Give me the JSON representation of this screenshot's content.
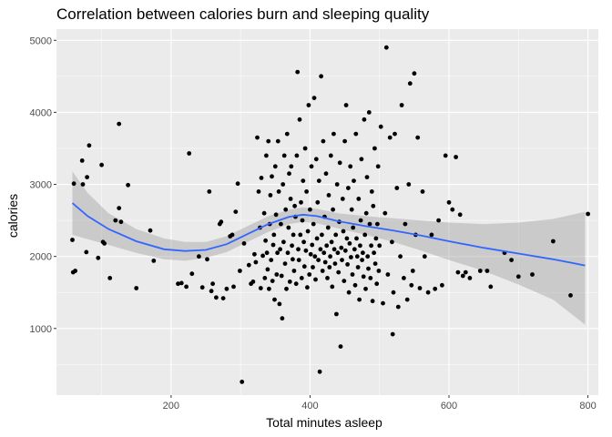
{
  "chart_data": {
    "type": "scatter",
    "title": "Correlation between calories burn and sleeping quality",
    "xlabel": "Total minutes asleep",
    "ylabel": "calories",
    "xlim": [
      35,
      815
    ],
    "ylim": [
      75,
      5155
    ],
    "x_ticks": [
      200,
      400,
      600,
      800
    ],
    "y_ticks": [
      1000,
      2000,
      3000,
      4000,
      5000
    ],
    "grid": true,
    "background": "#ebebeb",
    "point_color": "#000000",
    "smooth_color": "#3366ff",
    "ribbon_color": "#999999",
    "smooth_line": [
      [
        58,
        2740
      ],
      [
        80,
        2560
      ],
      [
        110,
        2380
      ],
      [
        150,
        2210
      ],
      [
        190,
        2100
      ],
      [
        220,
        2075
      ],
      [
        250,
        2090
      ],
      [
        280,
        2170
      ],
      [
        310,
        2310
      ],
      [
        340,
        2450
      ],
      [
        370,
        2550
      ],
      [
        390,
        2580
      ],
      [
        410,
        2560
      ],
      [
        440,
        2490
      ],
      [
        480,
        2420
      ],
      [
        520,
        2360
      ],
      [
        560,
        2290
      ],
      [
        600,
        2210
      ],
      [
        650,
        2120
      ],
      [
        700,
        2040
      ],
      [
        750,
        1960
      ],
      [
        796,
        1875
      ]
    ],
    "confidence_band": {
      "upper": [
        [
          58,
          3180
        ],
        [
          80,
          2880
        ],
        [
          110,
          2600
        ],
        [
          150,
          2380
        ],
        [
          190,
          2250
        ],
        [
          220,
          2200
        ],
        [
          250,
          2200
        ],
        [
          280,
          2280
        ],
        [
          310,
          2420
        ],
        [
          340,
          2560
        ],
        [
          370,
          2650
        ],
        [
          390,
          2680
        ],
        [
          410,
          2660
        ],
        [
          440,
          2600
        ],
        [
          480,
          2560
        ],
        [
          520,
          2530
        ],
        [
          560,
          2500
        ],
        [
          600,
          2470
        ],
        [
          650,
          2450
        ],
        [
          700,
          2470
        ],
        [
          750,
          2520
        ],
        [
          796,
          2620
        ]
      ],
      "lower": [
        [
          58,
          2300
        ],
        [
          80,
          2240
        ],
        [
          110,
          2160
        ],
        [
          150,
          2050
        ],
        [
          190,
          1960
        ],
        [
          220,
          1940
        ],
        [
          250,
          1980
        ],
        [
          280,
          2060
        ],
        [
          310,
          2200
        ],
        [
          340,
          2340
        ],
        [
          370,
          2450
        ],
        [
          390,
          2480
        ],
        [
          410,
          2460
        ],
        [
          440,
          2390
        ],
        [
          480,
          2300
        ],
        [
          520,
          2200
        ],
        [
          560,
          2080
        ],
        [
          600,
          1950
        ],
        [
          650,
          1800
        ],
        [
          700,
          1610
        ],
        [
          750,
          1400
        ],
        [
          796,
          1050
        ]
      ]
    },
    "points": [
      [
        58,
        2230
      ],
      [
        59,
        1780
      ],
      [
        62,
        1800
      ],
      [
        60,
        3010
      ],
      [
        73,
        3000
      ],
      [
        72,
        3330
      ],
      [
        78,
        2060
      ],
      [
        79,
        3100
      ],
      [
        82,
        3540
      ],
      [
        95,
        1980
      ],
      [
        100,
        3270
      ],
      [
        102,
        2200
      ],
      [
        104,
        2180
      ],
      [
        112,
        1700
      ],
      [
        120,
        2500
      ],
      [
        125,
        3840
      ],
      [
        125,
        2670
      ],
      [
        128,
        2480
      ],
      [
        138,
        2990
      ],
      [
        150,
        1560
      ],
      [
        170,
        2360
      ],
      [
        175,
        1940
      ],
      [
        210,
        1620
      ],
      [
        215,
        1630
      ],
      [
        222,
        1580
      ],
      [
        226,
        3430
      ],
      [
        230,
        1760
      ],
      [
        240,
        2000
      ],
      [
        245,
        1570
      ],
      [
        252,
        1960
      ],
      [
        255,
        2900
      ],
      [
        258,
        1520
      ],
      [
        260,
        1620
      ],
      [
        265,
        1430
      ],
      [
        270,
        2450
      ],
      [
        272,
        2480
      ],
      [
        275,
        1420
      ],
      [
        280,
        1550
      ],
      [
        285,
        2280
      ],
      [
        288,
        2300
      ],
      [
        290,
        1580
      ],
      [
        293,
        2620
      ],
      [
        296,
        3010
      ],
      [
        299,
        1800
      ],
      [
        302,
        260
      ],
      [
        305,
        2180
      ],
      [
        312,
        1880
      ],
      [
        315,
        1620
      ],
      [
        318,
        1650
      ],
      [
        320,
        2030
      ],
      [
        322,
        1920
      ],
      [
        324,
        3650
      ],
      [
        326,
        2900
      ],
      [
        328,
        2400
      ],
      [
        329,
        1560
      ],
      [
        330,
        3090
      ],
      [
        332,
        2010
      ],
      [
        334,
        2600
      ],
      [
        335,
        1700
      ],
      [
        336,
        2220
      ],
      [
        337,
        3400
      ],
      [
        338,
        2050
      ],
      [
        339,
        1820
      ],
      [
        340,
        3600
      ],
      [
        341,
        1550
      ],
      [
        342,
        2450
      ],
      [
        343,
        2850
      ],
      [
        344,
        1950
      ],
      [
        345,
        3110
      ],
      [
        346,
        1660
      ],
      [
        347,
        2160
      ],
      [
        348,
        2300
      ],
      [
        349,
        1400
      ],
      [
        350,
        3250
      ],
      [
        351,
        2580
      ],
      [
        352,
        1750
      ],
      [
        353,
        2050
      ],
      [
        354,
        3600
      ],
      [
        355,
        2900
      ],
      [
        356,
        1340
      ],
      [
        357,
        2100
      ],
      [
        358,
        2450
      ],
      [
        359,
        1730
      ],
      [
        360,
        1140
      ],
      [
        361,
        3000
      ],
      [
        362,
        2200
      ],
      [
        363,
        3400
      ],
      [
        364,
        1900
      ],
      [
        365,
        2650
      ],
      [
        366,
        1550
      ],
      [
        367,
        3700
      ],
      [
        368,
        2050
      ],
      [
        369,
        2400
      ],
      [
        370,
        3150
      ],
      [
        371,
        1650
      ],
      [
        372,
        2800
      ],
      [
        373,
        3250
      ],
      [
        374,
        2150
      ],
      [
        375,
        1960
      ],
      [
        376,
        2300
      ],
      [
        377,
        1800
      ],
      [
        378,
        2700
      ],
      [
        379,
        2550
      ],
      [
        380,
        1620
      ],
      [
        381,
        3400
      ],
      [
        382,
        4560
      ],
      [
        383,
        2100
      ],
      [
        384,
        1950
      ],
      [
        385,
        3900
      ],
      [
        386,
        2300
      ],
      [
        387,
        2750
      ],
      [
        388,
        1700
      ],
      [
        389,
        2500
      ],
      [
        390,
        3050
      ],
      [
        391,
        2200
      ],
      [
        392,
        1860
      ],
      [
        393,
        3500
      ],
      [
        394,
        2080
      ],
      [
        395,
        2900
      ],
      [
        396,
        1570
      ],
      [
        397,
        2350
      ],
      [
        398,
        4100
      ],
      [
        399,
        1750
      ],
      [
        400,
        2650
      ],
      [
        401,
        2030
      ],
      [
        402,
        3250
      ],
      [
        403,
        2160
      ],
      [
        404,
        1850
      ],
      [
        405,
        2450
      ],
      [
        406,
        4200
      ],
      [
        407,
        2000
      ],
      [
        408,
        1680
      ],
      [
        409,
        3350
      ],
      [
        410,
        2250
      ],
      [
        411,
        2750
      ],
      [
        412,
        1950
      ],
      [
        413,
        3050
      ],
      [
        414,
        400
      ],
      [
        415,
        2100
      ],
      [
        416,
        4500
      ],
      [
        417,
        2300
      ],
      [
        418,
        1800
      ],
      [
        419,
        3600
      ],
      [
        420,
        2050
      ],
      [
        421,
        2550
      ],
      [
        422,
        1920
      ],
      [
        423,
        3150
      ],
      [
        424,
        2150
      ],
      [
        425,
        1700
      ],
      [
        426,
        2400
      ],
      [
        427,
        2850
      ],
      [
        428,
        1850
      ],
      [
        429,
        2000
      ],
      [
        430,
        3400
      ],
      [
        431,
        2200
      ],
      [
        432,
        1580
      ],
      [
        433,
        2650
      ],
      [
        434,
        3700
      ],
      [
        435,
        2100
      ],
      [
        436,
        1900
      ],
      [
        437,
        2300
      ],
      [
        438,
        1200
      ],
      [
        439,
        3000
      ],
      [
        440,
        2050
      ],
      [
        441,
        1780
      ],
      [
        442,
        2480
      ],
      [
        443,
        3300
      ],
      [
        444,
        750
      ],
      [
        445,
        2120
      ],
      [
        446,
        1950
      ],
      [
        447,
        2800
      ],
      [
        448,
        2350
      ],
      [
        449,
        1660
      ],
      [
        450,
        3600
      ],
      [
        451,
        2080
      ],
      [
        452,
        4100
      ],
      [
        453,
        2250
      ],
      [
        454,
        1890
      ],
      [
        455,
        2950
      ],
      [
        456,
        1500
      ],
      [
        457,
        2180
      ],
      [
        458,
        3250
      ],
      [
        459,
        1990
      ],
      [
        460,
        2650
      ],
      [
        461,
        1750
      ],
      [
        462,
        2400
      ],
      [
        463,
        3050
      ],
      [
        464,
        2100
      ],
      [
        465,
        1600
      ],
      [
        466,
        3700
      ],
      [
        467,
        2250
      ],
      [
        468,
        2000
      ],
      [
        469,
        1850
      ],
      [
        470,
        2800
      ],
      [
        471,
        1400
      ],
      [
        472,
        2150
      ],
      [
        473,
        2500
      ],
      [
        474,
        3350
      ],
      [
        475,
        1950
      ],
      [
        476,
        2050
      ],
      [
        477,
        1720
      ],
      [
        478,
        3900
      ],
      [
        479,
        2300
      ],
      [
        480,
        1550
      ],
      [
        481,
        2600
      ],
      [
        482,
        3100
      ],
      [
        483,
        2000
      ],
      [
        484,
        1830
      ],
      [
        485,
        4000
      ],
      [
        486,
        2450
      ],
      [
        487,
        1700
      ],
      [
        488,
        2150
      ],
      [
        489,
        2900
      ],
      [
        490,
        1380
      ],
      [
        491,
        2700
      ],
      [
        492,
        2050
      ],
      [
        493,
        3500
      ],
      [
        494,
        1900
      ],
      [
        495,
        2250
      ],
      [
        496,
        1620
      ],
      [
        497,
        2450
      ],
      [
        498,
        3250
      ],
      [
        499,
        1800
      ],
      [
        500,
        2150
      ],
      [
        502,
        3800
      ],
      [
        505,
        1350
      ],
      [
        508,
        2600
      ],
      [
        510,
        4900
      ],
      [
        512,
        1750
      ],
      [
        515,
        3650
      ],
      [
        518,
        2200
      ],
      [
        519,
        920
      ],
      [
        520,
        1500
      ],
      [
        522,
        3700
      ],
      [
        525,
        2950
      ],
      [
        527,
        1300
      ],
      [
        530,
        2000
      ],
      [
        532,
        4100
      ],
      [
        535,
        1700
      ],
      [
        537,
        2450
      ],
      [
        540,
        1400
      ],
      [
        542,
        3000
      ],
      [
        544,
        4400
      ],
      [
        546,
        1600
      ],
      [
        548,
        1800
      ],
      [
        550,
        4540
      ],
      [
        552,
        2300
      ],
      [
        555,
        3650
      ],
      [
        558,
        1560
      ],
      [
        562,
        2900
      ],
      [
        565,
        2000
      ],
      [
        570,
        1500
      ],
      [
        575,
        2300
      ],
      [
        580,
        1550
      ],
      [
        585,
        2500
      ],
      [
        590,
        1600
      ],
      [
        595,
        3400
      ],
      [
        600,
        2750
      ],
      [
        605,
        2650
      ],
      [
        610,
        3380
      ],
      [
        613,
        1780
      ],
      [
        616,
        2580
      ],
      [
        620,
        1730
      ],
      [
        624,
        1780
      ],
      [
        630,
        1700
      ],
      [
        645,
        1800
      ],
      [
        655,
        1800
      ],
      [
        660,
        1580
      ],
      [
        680,
        2050
      ],
      [
        690,
        1950
      ],
      [
        700,
        1720
      ],
      [
        720,
        1750
      ],
      [
        750,
        2210
      ],
      [
        775,
        1460
      ],
      [
        800,
        2590
      ]
    ]
  }
}
